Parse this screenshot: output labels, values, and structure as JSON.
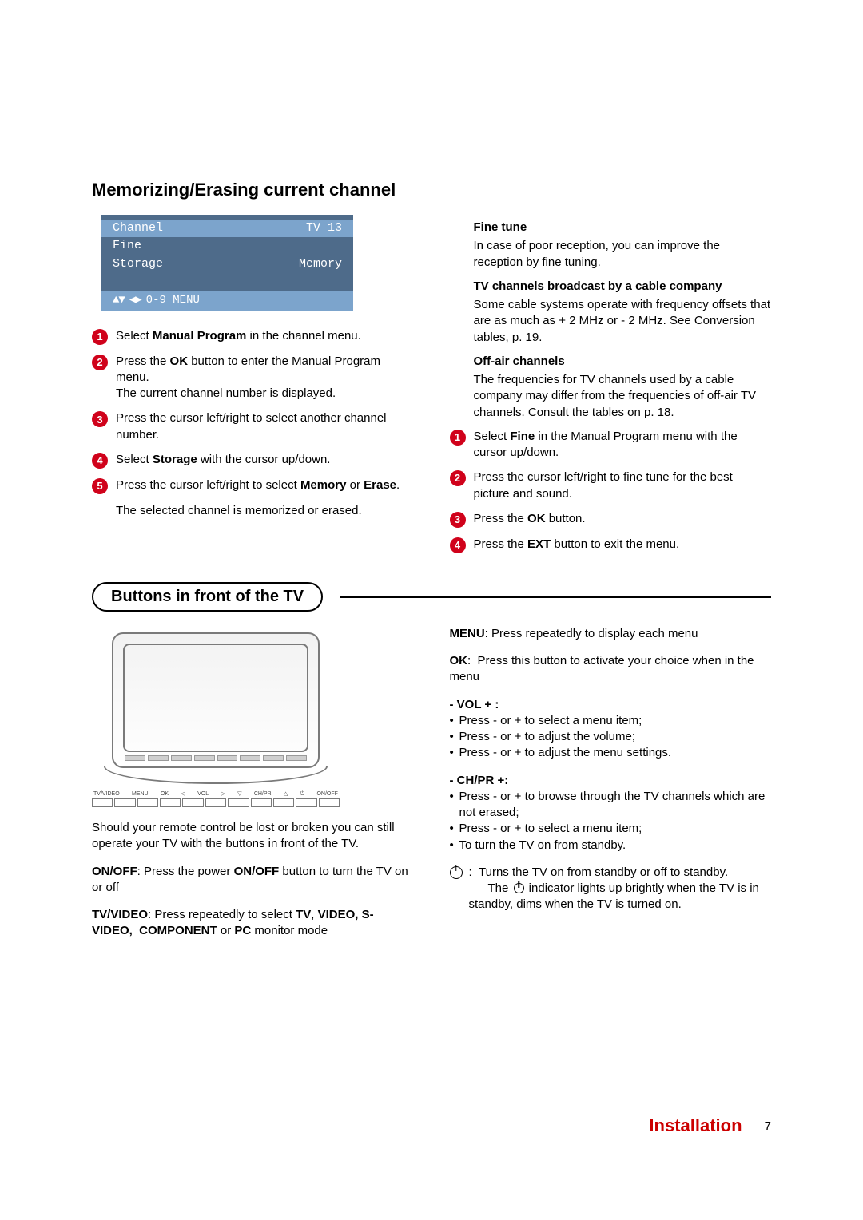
{
  "title": "Memorizing/Erasing current channel",
  "osd": {
    "bg_color": "#4e6b8a",
    "sel_color": "#7ca4cc",
    "rows": [
      {
        "k": "Channel",
        "v": "TV 13",
        "sel": true
      },
      {
        "k": "Fine",
        "v": ""
      },
      {
        "k": "Storage",
        "v": "Memory"
      }
    ],
    "footer": "0-9 MENU"
  },
  "steps_left": [
    {
      "n": "1",
      "html": "Select <b>Manual Program</b> in the channel menu."
    },
    {
      "n": "2",
      "html": "Press the <b>OK</b> button to enter the Manual Program menu.<br>The current channel number is displayed."
    },
    {
      "n": "3",
      "html": "Press the cursor left/right to select another channel number."
    },
    {
      "n": "4",
      "html": "Select <b>Storage</b> with the cursor up/down."
    },
    {
      "n": "5",
      "html": "Press the cursor left/right to select <b>Memory</b> or <b>Erase</b>."
    }
  ],
  "left_tail": "The selected channel is memorized or erased.",
  "right_col": {
    "fine_tune_h": "Fine tune",
    "fine_tune_p": "In case of poor reception, you can improve the reception by fine tuning.",
    "cable_h": "TV channels broadcast by a cable company",
    "cable_p": "Some cable systems operate with frequency offsets that are as much as + 2 MHz or - 2 MHz. See Conversion tables, p. 19.",
    "offair_h": "Off-air channels",
    "offair_p": "The frequencies for TV channels used by a cable company may differ from the frequencies of off-air TV channels. Consult the tables on p. 18.",
    "steps": [
      {
        "n": "1",
        "html": "Select <b>Fine</b> in the Manual Program menu with the cursor up/down."
      },
      {
        "n": "2",
        "html": "Press the cursor left/right to fine tune for the best picture and sound."
      },
      {
        "n": "3",
        "html": "Press the <b>OK</b> button."
      },
      {
        "n": "4",
        "html": "Press the <b>EXT</b> button to exit the menu."
      }
    ]
  },
  "section2_title": "Buttons in front of the TV",
  "front_labels": [
    "TV/VIDEO",
    "MENU",
    "OK",
    "◁",
    "VOL",
    "▷",
    "▽",
    "CH/PR",
    "△",
    "⏻",
    "ON/OFF"
  ],
  "left2": {
    "intro": "Should your remote control be lost or broken you can still operate your TV with the buttons in front of the TV.",
    "onoff_html": "<b>ON/OFF</b>: Press the power <b>ON/OFF</b> button to turn the TV on or off",
    "tvvideo_html": "<b>TV/VIDEO</b>: Press repeatedly to select <b>TV</b>, <b>VIDEO, S-VIDEO,&nbsp; COMPONENT</b> or <b>PC</b> monitor mode"
  },
  "right2": {
    "menu_html": "<b>MENU</b>: Press repeatedly to display each menu",
    "ok_label": "OK",
    "ok_text": ":&nbsp; Press this button to activate your choice when in the menu",
    "vol_h": "- VOL + :",
    "vol_items": [
      "Press - or + to select a menu item;",
      "Press - or + to adjust the volume;",
      "Press - or + to adjust the menu settings."
    ],
    "ch_h": "- CH/PR +:",
    "ch_items": [
      "Press - or +  to browse through the TV channels which are not erased;",
      "Press - or +  to select a menu item;",
      "To turn the TV on from standby."
    ],
    "power_text": "Turns the TV on from standby or off to standby.",
    "power_text2_pre": "The ",
    "power_text2_post": " indicator lights up brightly when the TV is in standby, dims when the TV is  turned on."
  },
  "footer": {
    "label": "Installation",
    "page": "7",
    "color": "#cc0000"
  }
}
